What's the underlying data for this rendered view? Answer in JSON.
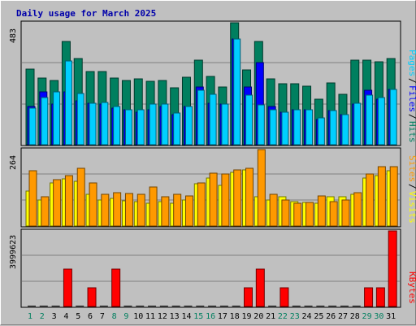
{
  "chart_data": [
    {
      "type": "bar",
      "title": "Daily usage for March 2025",
      "ylabel_max": "483",
      "ylim": [
        0,
        483
      ],
      "legend": [
        "Pages",
        "Files",
        "Hits"
      ],
      "categories": [
        "1",
        "2",
        "3",
        "4",
        "5",
        "6",
        "7",
        "8",
        "9",
        "10",
        "11",
        "12",
        "13",
        "14",
        "15",
        "16",
        "17",
        "18",
        "19",
        "20",
        "21",
        "22",
        "23",
        "24",
        "25",
        "26",
        "27",
        "28",
        "29",
        "30",
        "31"
      ],
      "weekend_days": [
        "1",
        "2",
        "8",
        "9",
        "15",
        "16",
        "22",
        "23",
        "29",
        "30"
      ],
      "series": [
        {
          "name": "Hits",
          "color": "#007f5f",
          "values": [
            300,
            265,
            255,
            410,
            340,
            290,
            290,
            265,
            255,
            262,
            252,
            255,
            224,
            268,
            335,
            270,
            230,
            483,
            295,
            410,
            262,
            240,
            240,
            233,
            180,
            245,
            200,
            335,
            335,
            328,
            340
          ]
        },
        {
          "name": "Files",
          "color": "#0000ff",
          "values": [
            150,
            210,
            160,
            210,
            175,
            165,
            160,
            145,
            140,
            130,
            140,
            150,
            120,
            150,
            230,
            165,
            160,
            420,
            230,
            325,
            150,
            130,
            140,
            140,
            100,
            135,
            120,
            160,
            215,
            180,
            220
          ]
        },
        {
          "name": "Pages",
          "color": "#00cfff",
          "values": [
            145,
            188,
            208,
            332,
            202,
            165,
            168,
            150,
            140,
            140,
            160,
            160,
            125,
            150,
            215,
            200,
            160,
            417,
            198,
            158,
            140,
            128,
            140,
            140,
            105,
            135,
            120,
            165,
            195,
            188,
            219
          ]
        }
      ]
    },
    {
      "type": "bar",
      "ylabel_max": "264",
      "ylim": [
        0,
        264
      ],
      "legend": [
        "Sites",
        "Visits"
      ],
      "series": [
        {
          "name": "Visits",
          "color": "#ffff00",
          "values": [
            120,
            90,
            150,
            162,
            155,
            110,
            90,
            95,
            88,
            85,
            80,
            85,
            80,
            90,
            145,
            165,
            140,
            185,
            195,
            100,
            90,
            100,
            85,
            82,
            80,
            100,
            100,
            110,
            165,
            175,
            190
          ]
        },
        {
          "name": "Sites",
          "color": "#ff9900",
          "values": [
            190,
            100,
            160,
            175,
            200,
            150,
            110,
            115,
            112,
            110,
            135,
            100,
            110,
            105,
            150,
            182,
            180,
            195,
            200,
            264,
            110,
            90,
            80,
            82,
            105,
            85,
            90,
            115,
            180,
            205,
            205
          ]
        }
      ]
    },
    {
      "type": "bar",
      "ylabel_max": "3999623",
      "ylim": [
        0,
        3999623
      ],
      "legend": [
        "KBytes"
      ],
      "series": [
        {
          "name": "KBytes",
          "color": "#ff0000",
          "values": [
            0,
            0,
            0,
            1960000,
            0,
            1000000,
            0,
            1960000,
            0,
            0,
            0,
            0,
            0,
            0,
            0,
            0,
            0,
            0,
            1000000,
            1960000,
            0,
            1000000,
            0,
            0,
            0,
            0,
            0,
            0,
            1000000,
            1000000,
            3999623
          ]
        }
      ]
    }
  ]
}
